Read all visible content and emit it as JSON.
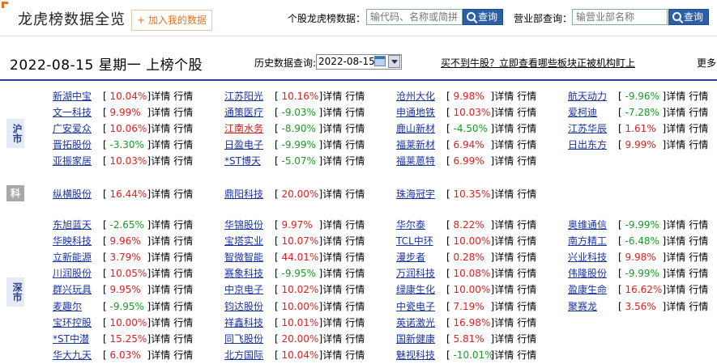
{
  "header": {
    "title": "龙虎榜数据全览",
    "add_label": "+ 加入我的数据",
    "stock_search_label": "个股龙虎榜数据：",
    "stock_search_placeholder": "输代码、名称或简拼",
    "search_button": "查询",
    "branch_search_label": "营业部查询：",
    "branch_search_placeholder": "输营业部名称",
    "branch_button": "查询"
  },
  "subheader": {
    "date_title": "2022-08-15 星期一 上榜个股",
    "history_label": "历史数据查询:",
    "history_date": "2022-08-15",
    "promo": "买不到牛股？立即查看哪些板块正被机构盯上",
    "more": "更多"
  },
  "labels": {
    "detail": "详情",
    "quote": "行情"
  },
  "colors": {
    "up": "#e02020",
    "down": "#1a9a22",
    "link": "#1a33a3",
    "accent": "#e8731b"
  },
  "markets": [
    {
      "label": "沪市",
      "stocks": [
        {
          "name": "新湖中宝",
          "chg": "10.04%",
          "up": true
        },
        {
          "name": "文一科技",
          "chg": "9.99%",
          "up": true
        },
        {
          "name": "广安爱众",
          "chg": "10.06%",
          "up": true
        },
        {
          "name": "晋拓股份",
          "chg": "-3.30%",
          "up": false
        },
        {
          "name": "亚振家居",
          "chg": "10.03%",
          "up": true
        },
        {
          "name": "江苏阳光",
          "chg": "10.16%",
          "up": true
        },
        {
          "name": "通策医疗",
          "chg": "-9.03%",
          "up": false
        },
        {
          "name": "江南水务",
          "chg": "-8.90%",
          "up": false,
          "red": true
        },
        {
          "name": "日盈电子",
          "chg": "-9.99%",
          "up": false
        },
        {
          "name": "*ST博天",
          "chg": "-5.07%",
          "up": false
        },
        {
          "name": "沧州大化",
          "chg": "9.98%",
          "up": true
        },
        {
          "name": "申通地铁",
          "chg": "10.03%",
          "up": true
        },
        {
          "name": "鹿山新材",
          "chg": "-4.50%",
          "up": false
        },
        {
          "name": "福莱新材",
          "chg": "6.94%",
          "up": true
        },
        {
          "name": "福莱蒽特",
          "chg": "6.99%",
          "up": true
        },
        {
          "name": "航天动力",
          "chg": "-9.96%",
          "up": false
        },
        {
          "name": "爱柯迪",
          "chg": "-7.28%",
          "up": false
        },
        {
          "name": "江苏华辰",
          "chg": "1.61%",
          "up": true
        },
        {
          "name": "日出东方",
          "chg": "9.99%",
          "up": true
        }
      ]
    },
    {
      "label": "科",
      "stocks": [
        {
          "name": "纵横股份",
          "chg": "16.44%",
          "up": true
        },
        {
          "name": "鼎阳科技",
          "chg": "20.00%",
          "up": true
        },
        {
          "name": "珠海冠宇",
          "chg": "10.35%",
          "up": true
        }
      ]
    },
    {
      "label": "深市",
      "stocks": [
        {
          "name": "东旭蓝天",
          "chg": "-2.65%",
          "up": false
        },
        {
          "name": "华映科技",
          "chg": "9.96%",
          "up": true
        },
        {
          "name": "立新能源",
          "chg": "3.79%",
          "up": true
        },
        {
          "name": "川润股份",
          "chg": "10.05%",
          "up": true
        },
        {
          "name": "群兴玩具",
          "chg": "9.95%",
          "up": true
        },
        {
          "name": "麦趣尔",
          "chg": "-9.95%",
          "up": false
        },
        {
          "name": "宝环控股",
          "chg": "10.00%",
          "up": true
        },
        {
          "name": "*ST中潜",
          "chg": "15.25%",
          "up": true
        },
        {
          "name": "华大九天",
          "chg": "6.03%",
          "up": true
        },
        {
          "name": "华锦股份",
          "chg": "9.97%",
          "up": true
        },
        {
          "name": "宝塔实业",
          "chg": "10.07%",
          "up": true
        },
        {
          "name": "智微智能",
          "chg": "44.01%",
          "up": true
        },
        {
          "name": "赛象科技",
          "chg": "-9.95%",
          "up": false
        },
        {
          "name": "中京电子",
          "chg": "10.02%",
          "up": true
        },
        {
          "name": "钧达股份",
          "chg": "10.00%",
          "up": true
        },
        {
          "name": "祥鑫科技",
          "chg": "10.01%",
          "up": true
        },
        {
          "name": "同飞股份",
          "chg": "20.00%",
          "up": true
        },
        {
          "name": "北方国际",
          "chg": "10.04%",
          "up": true
        },
        {
          "name": "华尔泰",
          "chg": "8.22%",
          "up": true
        },
        {
          "name": "TCL中环",
          "chg": "10.00%",
          "up": true
        },
        {
          "name": "漫步者",
          "chg": "0.28%",
          "up": true
        },
        {
          "name": "万润科技",
          "chg": "10.08%",
          "up": true
        },
        {
          "name": "绿康生化",
          "chg": "10.00%",
          "up": true
        },
        {
          "name": "中瓷电子",
          "chg": "7.19%",
          "up": true
        },
        {
          "name": "英诺激光",
          "chg": "16.98%",
          "up": true
        },
        {
          "name": "国新健康",
          "chg": "5.81%",
          "up": true
        },
        {
          "name": "魅视科技",
          "chg": "-10.01%",
          "up": false
        },
        {
          "name": "奥维通信",
          "chg": "-9.99%",
          "up": false
        },
        {
          "name": "南方精工",
          "chg": "-6.48%",
          "up": false
        },
        {
          "name": "兴业科技",
          "chg": "9.98%",
          "up": true
        },
        {
          "name": "伟隆股份",
          "chg": "-9.99%",
          "up": false
        },
        {
          "name": "盈康生命",
          "chg": "16.62%",
          "up": true
        },
        {
          "name": "聚赛龙",
          "chg": "3.56%",
          "up": true
        }
      ]
    }
  ]
}
